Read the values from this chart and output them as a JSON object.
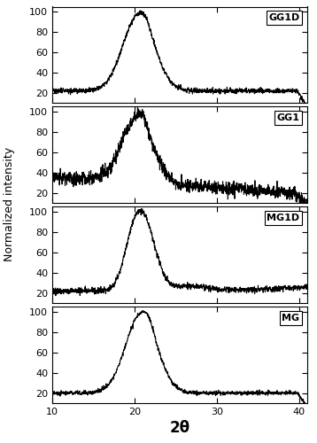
{
  "panels": [
    "GG1D",
    "GG1",
    "MG1D",
    "MG"
  ],
  "xlim": [
    10,
    41
  ],
  "ylim": [
    10,
    105
  ],
  "yticks": [
    20,
    40,
    60,
    80,
    100
  ],
  "xticks": [
    10,
    20,
    30,
    40
  ],
  "xlabel": "2θ",
  "ylabel": "Normalized intensity",
  "line_color": "#000000",
  "line_width": 0.8,
  "background_color": "#ffffff"
}
